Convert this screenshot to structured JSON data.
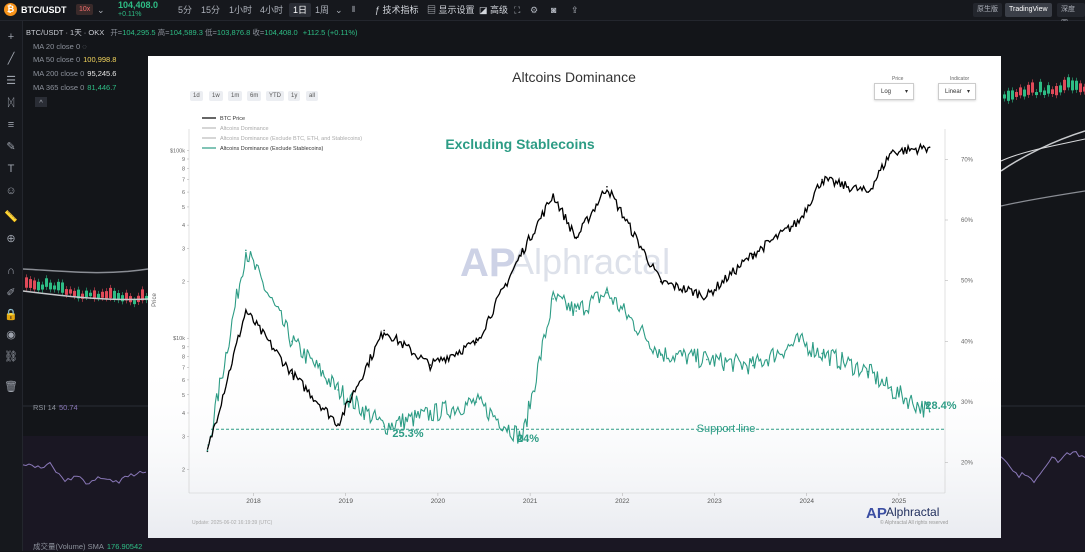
{
  "topbar": {
    "coin_icon": "bitcoin-icon",
    "symbol": "BTC/USDT",
    "leverage": "10x",
    "price": "104,408.0",
    "change": "+0.11%",
    "timeframes": [
      "5分",
      "15分",
      "1小时",
      "4小时",
      "1日",
      "1周"
    ],
    "active_timeframe": "1日",
    "indicators_label": "技术指标",
    "display_label": "显示设置",
    "advanced_label": "高级",
    "right_tabs": [
      "原生版",
      "TradingView",
      "深度图"
    ],
    "active_right_tab": "TradingView"
  },
  "legend": {
    "symbol_line": "BTC/USDT · 1天 · OKX",
    "open_label": "开=",
    "open": "104,295.5",
    "high_label": "高=",
    "high": "104,589.3",
    "low_label": "低=",
    "low": "103,876.8",
    "close_label": "收=",
    "close": "104,408.0",
    "change": "+112.5 (+0.11%)",
    "ma": [
      {
        "label": "MA 20 close 0",
        "value": ""
      },
      {
        "label": "MA 50 close 0",
        "value": "100,998.8"
      },
      {
        "label": "MA 200 close 0",
        "value": "95,245.6"
      },
      {
        "label": "MA 365 close 0",
        "value": "81,446.7"
      }
    ],
    "rsi_label": "RSI 14",
    "rsi_value": "50.74",
    "volume_label": "成交量(Volume) SMA",
    "volume_value": "176.90542"
  },
  "overlay": {
    "title": "Altcoins Dominance",
    "range_buttons": [
      "1d",
      "1w",
      "1m",
      "6m",
      "YTD",
      "1y",
      "all"
    ],
    "price_dropdown": {
      "label": "Price",
      "value": "Log"
    },
    "indicator_dropdown": {
      "label": "Indicator",
      "value": "Linear"
    },
    "series_legend": [
      "BTC Price",
      "Altcoins Dominance",
      "Altcoins Dominance (Exclude BTC, ETH, and Stablecoins)",
      "Altcoins Dominance (Exclude Stablecoins)"
    ],
    "headline": "Excluding Stablecoins",
    "annotations": [
      "25.3%",
      "24%",
      "28.4%",
      "Support line"
    ],
    "watermark": "Alphractal",
    "brand": "Alphractal",
    "copyright": "© Alphractal All rights reserved",
    "update_note": "Update: 2025-06-02 16:19:39 (UTC)",
    "y_left_label": "Price",
    "y_left_ticks": [
      "$100k",
      "9",
      "8",
      "7",
      "6",
      "5",
      "4",
      "3",
      "2",
      "$10k",
      "9",
      "8",
      "7",
      "6",
      "5",
      "4",
      "3",
      "2"
    ],
    "y_right_ticks": [
      "70%",
      "60%",
      "50%",
      "40%",
      "30%",
      "20%"
    ],
    "x_ticks": [
      "2018",
      "2019",
      "2020",
      "2021",
      "2022",
      "2023",
      "2024",
      "2025"
    ]
  },
  "chart_data": {
    "type": "line",
    "title": "Altcoins Dominance",
    "x": [
      "2017-07",
      "2017-12",
      "2018-06",
      "2018-12",
      "2019-06",
      "2019-12",
      "2020-06",
      "2020-12",
      "2021-04",
      "2021-07",
      "2021-11",
      "2022-06",
      "2022-12",
      "2023-06",
      "2023-12",
      "2024-03",
      "2024-09",
      "2024-12",
      "2025-05"
    ],
    "series": [
      {
        "name": "BTC Price",
        "axis": "left",
        "values": [
          2500,
          14000,
          6500,
          3500,
          11000,
          7200,
          9500,
          29000,
          58000,
          34000,
          64000,
          20000,
          16800,
          28000,
          42000,
          70000,
          60000,
          98000,
          104000
        ]
      },
      {
        "name": "Altcoins Dominance (Exclude Stablecoins)",
        "axis": "right",
        "values": [
          22,
          55,
          40,
          32,
          26,
          28,
          30,
          24,
          47,
          45,
          48,
          38,
          37,
          36,
          40,
          38,
          35,
          32,
          28.4
        ]
      }
    ],
    "y_left": {
      "label": "Price",
      "scale": "log",
      "range": [
        1500,
        130000
      ]
    },
    "y_right": {
      "scale": "linear",
      "range": [
        15,
        75
      ],
      "unit": "%"
    },
    "support_line": 25.5,
    "colors": {
      "btc": "#000000",
      "dominance": "#2d9c85"
    }
  }
}
